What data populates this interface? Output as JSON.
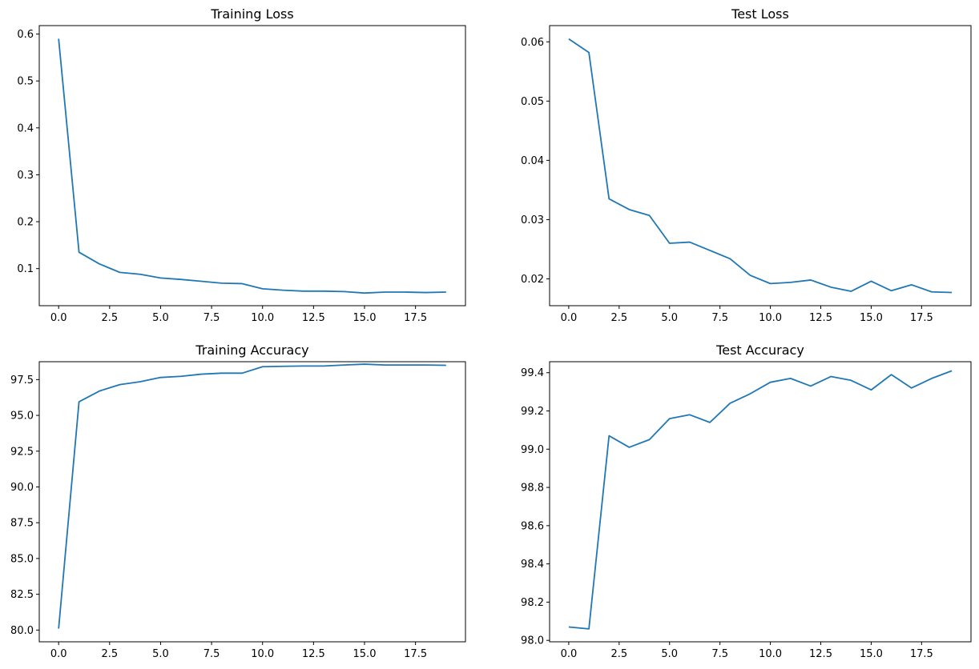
{
  "figure": {
    "background": "#ffffff"
  },
  "chart_data": [
    {
      "type": "line",
      "title": "Training Loss",
      "xlabel": "",
      "ylabel": "",
      "xlim": [
        -0.95,
        19.95
      ],
      "ylim": [
        0.021,
        0.618
      ],
      "xticks": [
        0.0,
        2.5,
        5.0,
        7.5,
        10.0,
        12.5,
        15.0,
        17.5
      ],
      "xtick_labels": [
        "0.0",
        "2.5",
        "5.0",
        "7.5",
        "10.0",
        "12.5",
        "15.0",
        "17.5"
      ],
      "yticks": [
        0.1,
        0.2,
        0.3,
        0.4,
        0.5,
        0.6
      ],
      "ytick_labels": [
        "0.1",
        "0.2",
        "0.3",
        "0.4",
        "0.5",
        "0.6"
      ],
      "grid": false,
      "series": [
        {
          "color": "#1f77b4",
          "x": [
            0,
            1,
            2,
            3,
            4,
            5,
            6,
            7,
            8,
            9,
            10,
            11,
            12,
            13,
            14,
            15,
            16,
            17,
            18,
            19
          ],
          "y": [
            0.59,
            0.135,
            0.11,
            0.092,
            0.088,
            0.08,
            0.077,
            0.073,
            0.069,
            0.068,
            0.057,
            0.054,
            0.052,
            0.052,
            0.051,
            0.048,
            0.05,
            0.05,
            0.049,
            0.05
          ]
        }
      ]
    },
    {
      "type": "line",
      "title": "Test Loss",
      "xlabel": "",
      "ylabel": "",
      "xlim": [
        -0.95,
        19.95
      ],
      "ylim": [
        0.01547,
        0.06274
      ],
      "xticks": [
        0.0,
        2.5,
        5.0,
        7.5,
        10.0,
        12.5,
        15.0,
        17.5
      ],
      "xtick_labels": [
        "0.0",
        "2.5",
        "5.0",
        "7.5",
        "10.0",
        "12.5",
        "15.0",
        "17.5"
      ],
      "yticks": [
        0.02,
        0.03,
        0.04,
        0.05,
        0.06
      ],
      "ytick_labels": [
        "0.02",
        "0.03",
        "0.04",
        "0.05",
        "0.06"
      ],
      "grid": false,
      "series": [
        {
          "color": "#1f77b4",
          "x": [
            0,
            1,
            2,
            3,
            4,
            5,
            6,
            7,
            8,
            9,
            10,
            11,
            12,
            13,
            14,
            15,
            16,
            17,
            18,
            19
          ],
          "y": [
            0.0605,
            0.0582,
            0.0335,
            0.0317,
            0.0307,
            0.026,
            0.0262,
            0.0248,
            0.0234,
            0.0206,
            0.0192,
            0.0194,
            0.0198,
            0.0186,
            0.0179,
            0.0196,
            0.018,
            0.019,
            0.0178,
            0.0177
          ]
        }
      ]
    },
    {
      "type": "line",
      "title": "Training Accuracy",
      "xlabel": "",
      "ylabel": "",
      "xlim": [
        -0.95,
        19.95
      ],
      "ylim": [
        79.18,
        98.75
      ],
      "xticks": [
        0.0,
        2.5,
        5.0,
        7.5,
        10.0,
        12.5,
        15.0,
        17.5
      ],
      "xtick_labels": [
        "0.0",
        "2.5",
        "5.0",
        "7.5",
        "10.0",
        "12.5",
        "15.0",
        "17.5"
      ],
      "yticks": [
        80.0,
        82.5,
        85.0,
        87.5,
        90.0,
        92.5,
        95.0,
        97.5
      ],
      "ytick_labels": [
        "80.0",
        "82.5",
        "85.0",
        "87.5",
        "90.0",
        "92.5",
        "95.0",
        "97.5"
      ],
      "grid": false,
      "series": [
        {
          "color": "#1f77b4",
          "x": [
            0,
            1,
            2,
            3,
            4,
            5,
            6,
            7,
            8,
            9,
            10,
            11,
            12,
            13,
            14,
            15,
            16,
            17,
            18,
            19
          ],
          "y": [
            80.1,
            95.95,
            96.7,
            97.15,
            97.35,
            97.65,
            97.73,
            97.88,
            97.95,
            97.95,
            98.4,
            98.43,
            98.45,
            98.45,
            98.52,
            98.58,
            98.52,
            98.52,
            98.52,
            98.5
          ]
        }
      ]
    },
    {
      "type": "line",
      "title": "Test Accuracy",
      "xlabel": "",
      "ylabel": "",
      "xlim": [
        -0.95,
        19.95
      ],
      "ylim": [
        97.9925,
        99.4575
      ],
      "xticks": [
        0.0,
        2.5,
        5.0,
        7.5,
        10.0,
        12.5,
        15.0,
        17.5
      ],
      "xtick_labels": [
        "0.0",
        "2.5",
        "5.0",
        "7.5",
        "10.0",
        "12.5",
        "15.0",
        "17.5"
      ],
      "yticks": [
        98.0,
        98.2,
        98.4,
        98.6,
        98.8,
        99.0,
        99.2,
        99.4
      ],
      "ytick_labels": [
        "98.0",
        "98.2",
        "98.4",
        "98.6",
        "98.8",
        "99.0",
        "99.2",
        "99.4"
      ],
      "grid": false,
      "series": [
        {
          "color": "#1f77b4",
          "x": [
            0,
            1,
            2,
            3,
            4,
            5,
            6,
            7,
            8,
            9,
            10,
            11,
            12,
            13,
            14,
            15,
            16,
            17,
            18,
            19
          ],
          "y": [
            98.07,
            98.06,
            99.07,
            99.01,
            99.05,
            99.16,
            99.18,
            99.14,
            99.24,
            99.29,
            99.35,
            99.37,
            99.33,
            99.38,
            99.36,
            99.31,
            99.39,
            99.32,
            99.37,
            99.41
          ]
        }
      ]
    }
  ]
}
